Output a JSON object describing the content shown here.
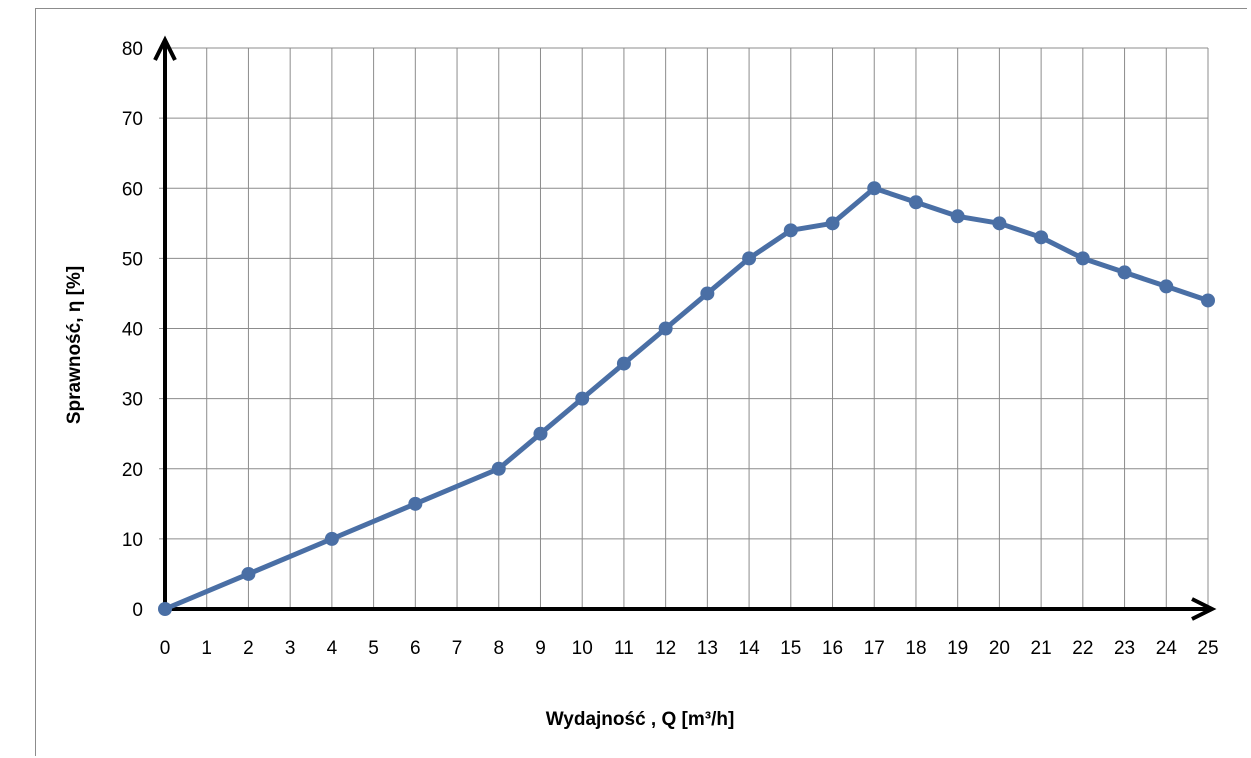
{
  "chart_data": {
    "type": "line",
    "xlabel": "Wydajność , Q [m³/h]",
    "ylabel": "Sprawność, η [%]",
    "x_categories": [
      "0",
      "1",
      "2",
      "3",
      "4",
      "5",
      "6",
      "7",
      "8",
      "9",
      "10",
      "11",
      "12",
      "13",
      "14",
      "15",
      "16",
      "17",
      "18",
      "19",
      "20",
      "21",
      "22",
      "23",
      "24",
      "25"
    ],
    "y_ticks": [
      "0",
      "10",
      "20",
      "30",
      "40",
      "50",
      "60",
      "70",
      "80"
    ],
    "ylim": [
      0,
      80
    ],
    "grid": true,
    "legend": "none",
    "series": [
      {
        "color": "#4a6fa5",
        "x": [
          "0",
          "2",
          "4",
          "6",
          "8",
          "9",
          "10",
          "11",
          "12",
          "13",
          "14",
          "15",
          "16",
          "17",
          "18",
          "19",
          "20",
          "21",
          "22",
          "23",
          "24",
          "25"
        ],
        "y": [
          0,
          5,
          10,
          15,
          20,
          25,
          30,
          35,
          40,
          45,
          50,
          54,
          55,
          60,
          58,
          56,
          55,
          53,
          50,
          48,
          46,
          44
        ]
      }
    ]
  }
}
